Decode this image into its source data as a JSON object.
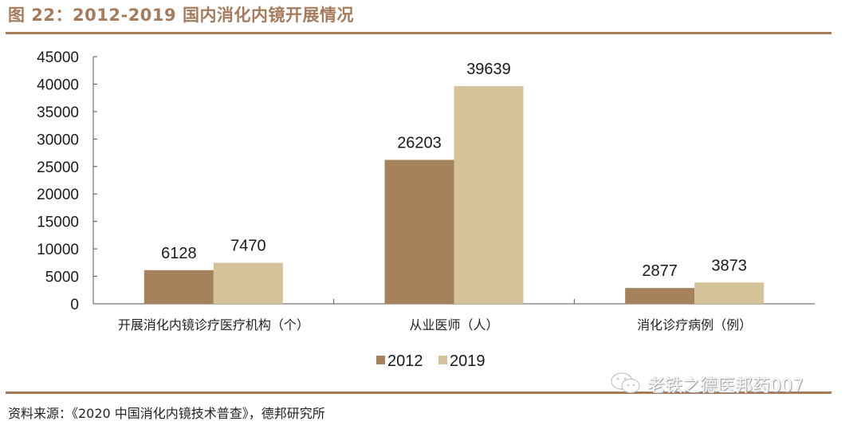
{
  "header": {
    "title": "图 22：2012-2019 国内消化内镜开展情况"
  },
  "footer": {
    "source": "资料来源：《2020 中国消化内镜技术普查》，德邦研究所",
    "watermark": "老铁之德医邦药007"
  },
  "colors": {
    "accent": "#a57b5c",
    "series_2012": "#a5825c",
    "series_2019": "#d4c29a",
    "axis": "#555555"
  },
  "chart_data": {
    "type": "bar",
    "title": "2012-2019 国内消化内镜开展情况",
    "categories": [
      "开展消化内镜诊疗医疗机构（个）",
      "从业医师（人）",
      "消化诊疗病例（例）"
    ],
    "series": [
      {
        "name": "2012",
        "values": [
          6128,
          26203,
          2877
        ]
      },
      {
        "name": "2019",
        "values": [
          7470,
          39639,
          3873
        ]
      }
    ],
    "xlabel": "",
    "ylabel": "",
    "ylim": [
      0,
      45000
    ],
    "yticks": [
      0,
      5000,
      10000,
      15000,
      20000,
      25000,
      30000,
      35000,
      40000,
      45000
    ],
    "grid": false,
    "legend_position": "bottom",
    "data_labels": true
  }
}
